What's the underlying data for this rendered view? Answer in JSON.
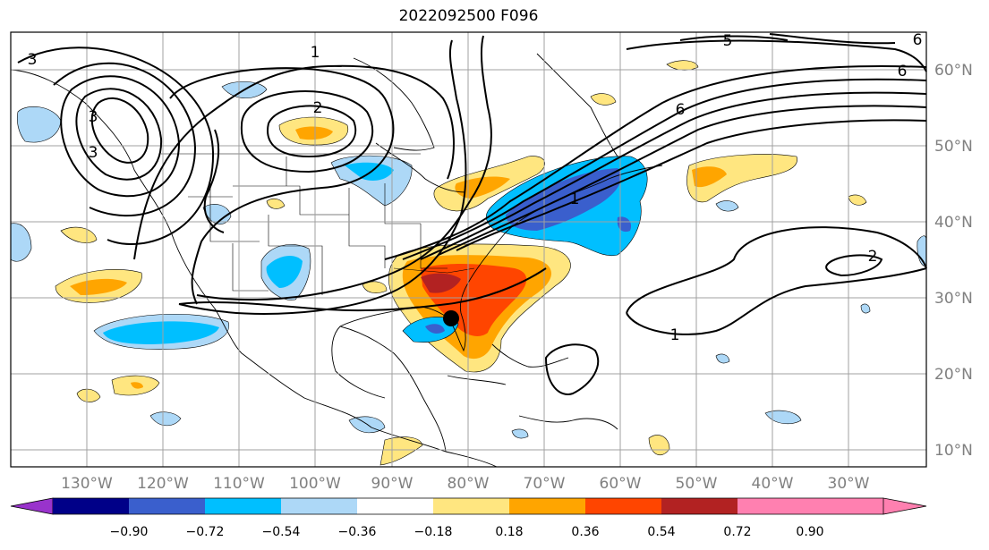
{
  "title": "2022092500 F096",
  "map": {
    "lon_labels": [
      "130°W",
      "120°W",
      "110°W",
      "100°W",
      "90°W",
      "80°W",
      "70°W",
      "60°W",
      "50°W",
      "40°W",
      "30°W"
    ],
    "lat_labels": [
      "60°N",
      "50°N",
      "40°N",
      "30°N",
      "20°N",
      "10°N"
    ],
    "contour_labels": [
      "1",
      "2",
      "3",
      "3",
      "3",
      "5",
      "6",
      "6",
      "6",
      "1",
      "1",
      "2"
    ],
    "marker": "storm-center-dot"
  },
  "colorbar": {
    "ticks": [
      "−0.90",
      "−0.72",
      "−0.54",
      "−0.36",
      "−0.18",
      "0.18",
      "0.36",
      "0.54",
      "0.72",
      "0.90"
    ],
    "colors": [
      "#9933cc",
      "#000088",
      "#3a5fcd",
      "#00bfff",
      "#add8f7",
      "#ffffff",
      "#ffe680",
      "#ffa500",
      "#ff4500",
      "#b22222",
      "#ff80b0"
    ]
  }
}
